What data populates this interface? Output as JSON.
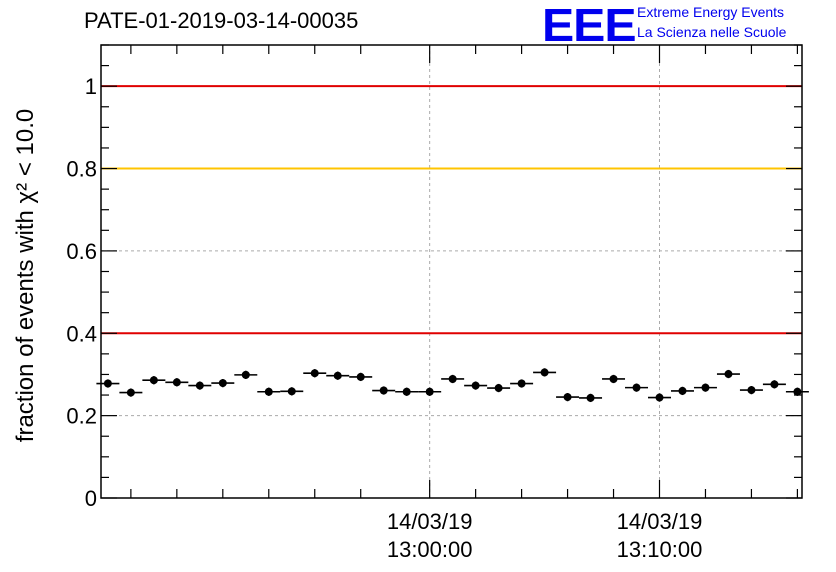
{
  "header": {
    "run_title": "PATE-01-2019-03-14-00035"
  },
  "logo": {
    "mark": "EEE",
    "line1": "Extreme Energy Events",
    "line2": "La Scienza nelle Scuole",
    "color": "#0000ee"
  },
  "chart_data": {
    "type": "scatter",
    "ylabel": "fraction of events with χ² < 10.0",
    "ylim": [
      0,
      1.1
    ],
    "y_ticks": [
      0,
      0.2,
      0.4,
      0.6,
      0.8,
      1
    ],
    "y_tick_labels": [
      "0",
      "0.2",
      "0.4",
      "0.6",
      "0.8",
      "1"
    ],
    "x_unit": "minutes",
    "xlim": [
      -14.3,
      16.2
    ],
    "x_ticks": [
      {
        "value": 0,
        "date_label": "14/03/19",
        "time_label": "13:00:00"
      },
      {
        "value": 10,
        "date_label": "14/03/19",
        "time_label": "13:10:00"
      }
    ],
    "x_minor_ticks": [
      -13,
      -11,
      -9,
      -7,
      -5,
      -3,
      2,
      4,
      6,
      8,
      12,
      14,
      16
    ],
    "grid": "dashed at major ticks",
    "reference_lines": [
      {
        "y": 1.0,
        "color": "#e00000"
      },
      {
        "y": 0.8,
        "color": "#ffc400"
      },
      {
        "y": 0.4,
        "color": "#e00000"
      }
    ],
    "series": [
      {
        "color": "#000000",
        "bin_halfwidth": 0.5,
        "y_error": 0.01,
        "x": [
          -14,
          -13,
          -12,
          -11,
          -10,
          -9,
          -8,
          -7,
          -6,
          -5,
          -4,
          -3,
          -2,
          -1,
          0,
          1,
          2,
          3,
          4,
          5,
          6,
          7,
          8,
          9,
          10,
          11,
          12,
          13,
          14,
          15,
          16
        ],
        "values": [
          0.278,
          0.256,
          0.286,
          0.281,
          0.273,
          0.279,
          0.299,
          0.258,
          0.259,
          0.303,
          0.297,
          0.294,
          0.261,
          0.258,
          0.258,
          0.289,
          0.273,
          0.267,
          0.278,
          0.305,
          0.245,
          0.243,
          0.289,
          0.268,
          0.244,
          0.26,
          0.268,
          0.301,
          0.262,
          0.276,
          0.258
        ]
      }
    ]
  }
}
